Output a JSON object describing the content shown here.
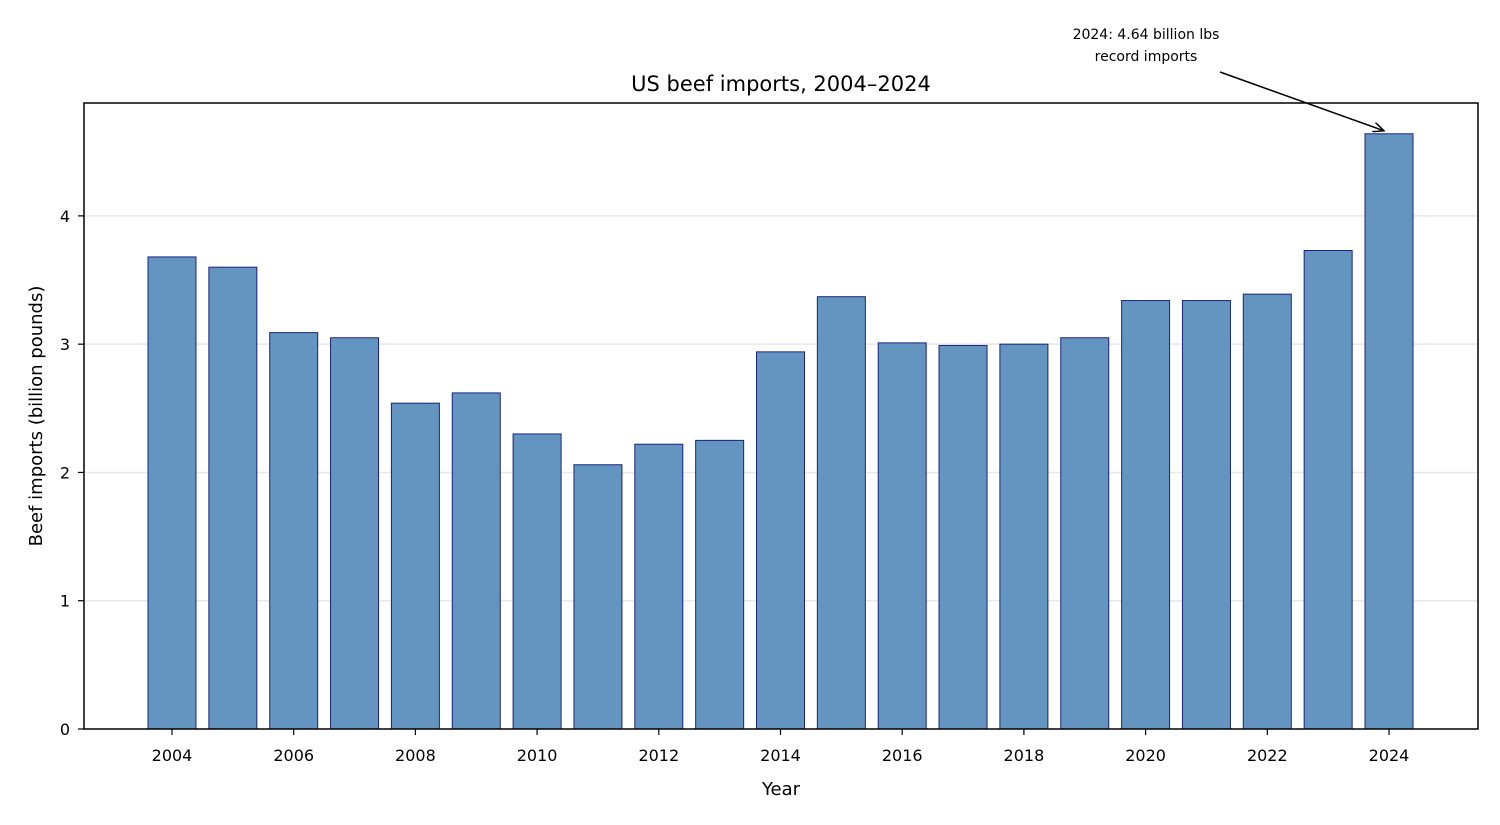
{
  "chart_data": {
    "type": "bar",
    "title": "US beef imports, 2004–2024",
    "xlabel": "Year",
    "ylabel": "Beef imports (billion pounds)",
    "categories": [
      "2004",
      "2005",
      "2006",
      "2007",
      "2008",
      "2009",
      "2010",
      "2011",
      "2012",
      "2013",
      "2014",
      "2015",
      "2016",
      "2017",
      "2018",
      "2019",
      "2020",
      "2021",
      "2022",
      "2023",
      "2024"
    ],
    "values": [
      3.68,
      3.6,
      3.09,
      3.05,
      2.54,
      2.62,
      2.3,
      2.06,
      2.22,
      2.25,
      2.94,
      3.37,
      3.01,
      2.99,
      3.0,
      3.05,
      3.34,
      3.34,
      3.39,
      3.73,
      4.64
    ],
    "x_tick_labels": [
      "2004",
      "2006",
      "2008",
      "2010",
      "2012",
      "2014",
      "2016",
      "2018",
      "2020",
      "2022",
      "2024"
    ],
    "y_ticks": [
      0,
      1,
      2,
      3,
      4
    ],
    "ylim": [
      0,
      4.88
    ],
    "grid": "horizontal",
    "colors": {
      "bar_fill": "#6495c1",
      "bar_edge": "#1a237e",
      "grid": "#e8e8e8"
    },
    "annotation": {
      "line1": "2024: 4.64 billion lbs",
      "line2": "record imports",
      "target_category": "2024",
      "target_value": 4.64
    }
  }
}
